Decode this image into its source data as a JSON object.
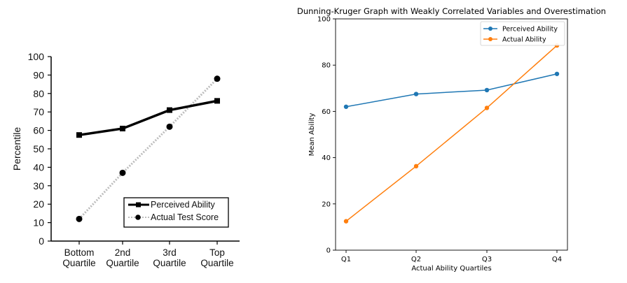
{
  "chart_data": [
    {
      "type": "line",
      "title": "",
      "xlabel": "",
      "ylabel": "Percentile",
      "ylim": [
        0,
        100
      ],
      "yticks": [
        0,
        10,
        20,
        30,
        40,
        50,
        60,
        70,
        80,
        90,
        100
      ],
      "categories": [
        [
          "Bottom",
          "Quartile"
        ],
        [
          "2nd",
          "Quartile"
        ],
        [
          "3rd",
          "Quartile"
        ],
        [
          "Top",
          "Quartile"
        ]
      ],
      "series": [
        {
          "name": "Perceived Ability",
          "values": [
            57.5,
            61,
            71,
            76
          ],
          "color": "#000000",
          "marker": "square",
          "line": "solid"
        },
        {
          "name": "Actual Test Score",
          "values": [
            12,
            37,
            62,
            88
          ],
          "color": "#bdbdbd",
          "marker": "circle",
          "line": "dotted"
        }
      ],
      "legend": "bottom-right",
      "grid": false
    },
    {
      "type": "line",
      "title": "Dunning-Kruger Graph with Weakly Correlated Variables and Overestimation",
      "xlabel": "Actual Ability Quartiles",
      "ylabel": "Mean Ability",
      "ylim": [
        0,
        100
      ],
      "yticks": [
        0,
        20,
        40,
        60,
        80,
        100
      ],
      "categories": [
        "Q1",
        "Q2",
        "Q3",
        "Q4"
      ],
      "series": [
        {
          "name": "Perceived Ability",
          "values": [
            62,
            67.5,
            69.2,
            76.2
          ],
          "color": "#1f77b4"
        },
        {
          "name": "Actual Ability",
          "values": [
            12.5,
            36.3,
            61.5,
            88.5
          ],
          "color": "#ff7f0e"
        }
      ],
      "legend": "top-right",
      "grid": false
    }
  ]
}
